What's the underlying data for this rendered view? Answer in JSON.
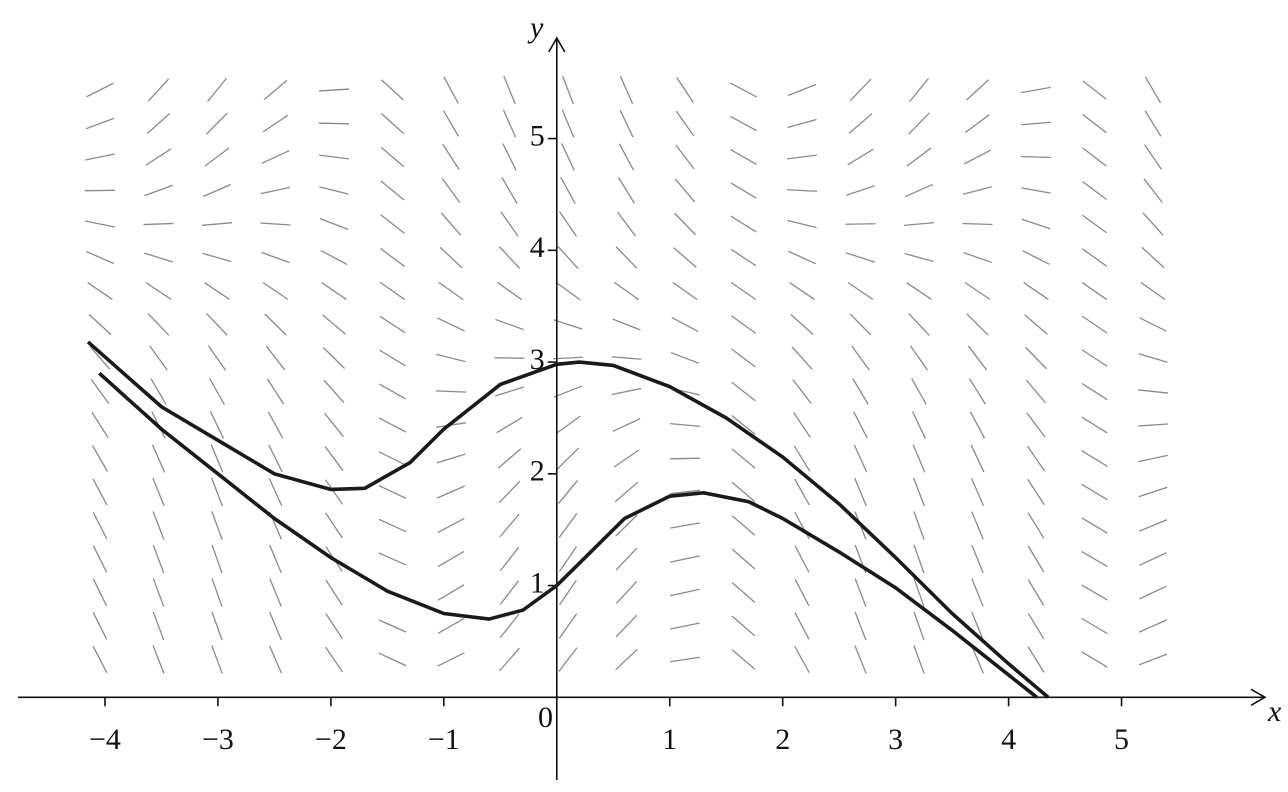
{
  "chart_data": {
    "type": "line",
    "x_label": "x",
    "y_label": "y",
    "origin_label": "0",
    "xlim": [
      -4.77,
      6.27
    ],
    "ylim": [
      -0.74,
      5.9
    ],
    "xticks": [
      {
        "value": -4,
        "label": "−4"
      },
      {
        "value": -3,
        "label": "−3"
      },
      {
        "value": -2,
        "label": "−2"
      },
      {
        "value": -1,
        "label": "−1"
      },
      1,
      2,
      3,
      4,
      5
    ],
    "yticks": [
      1,
      2,
      3,
      4,
      5
    ],
    "series": [
      {
        "color": "#1a1a1a",
        "x": [
          -4.15,
          -3.5,
          -3,
          -2.5,
          -2,
          -1.7,
          -1.3,
          -1,
          -0.5,
          0,
          0.2,
          0.5,
          1,
          1.5,
          2,
          2.5,
          3,
          3.5,
          4,
          4.35
        ],
        "values": [
          3.18,
          2.6,
          2.3,
          2.0,
          1.86,
          1.87,
          2.1,
          2.4,
          2.8,
          2.98,
          3.0,
          2.97,
          2.78,
          2.5,
          2.15,
          1.73,
          1.25,
          0.75,
          0.3,
          0
        ]
      },
      {
        "color": "#1a1a1a",
        "x": [
          -4.05,
          -3.5,
          -3,
          -2.5,
          -2,
          -1.5,
          -1,
          -0.6,
          -0.3,
          0,
          0.3,
          0.6,
          1,
          1.3,
          1.7,
          2,
          2.5,
          3,
          3.5,
          4,
          4.25
        ],
        "values": [
          2.9,
          2.4,
          2.0,
          1.6,
          1.25,
          0.95,
          0.75,
          0.7,
          0.78,
          1,
          1.3,
          1.6,
          1.8,
          1.83,
          1.75,
          1.6,
          1.3,
          0.98,
          0.6,
          0.2,
          0
        ]
      }
    ]
  }
}
